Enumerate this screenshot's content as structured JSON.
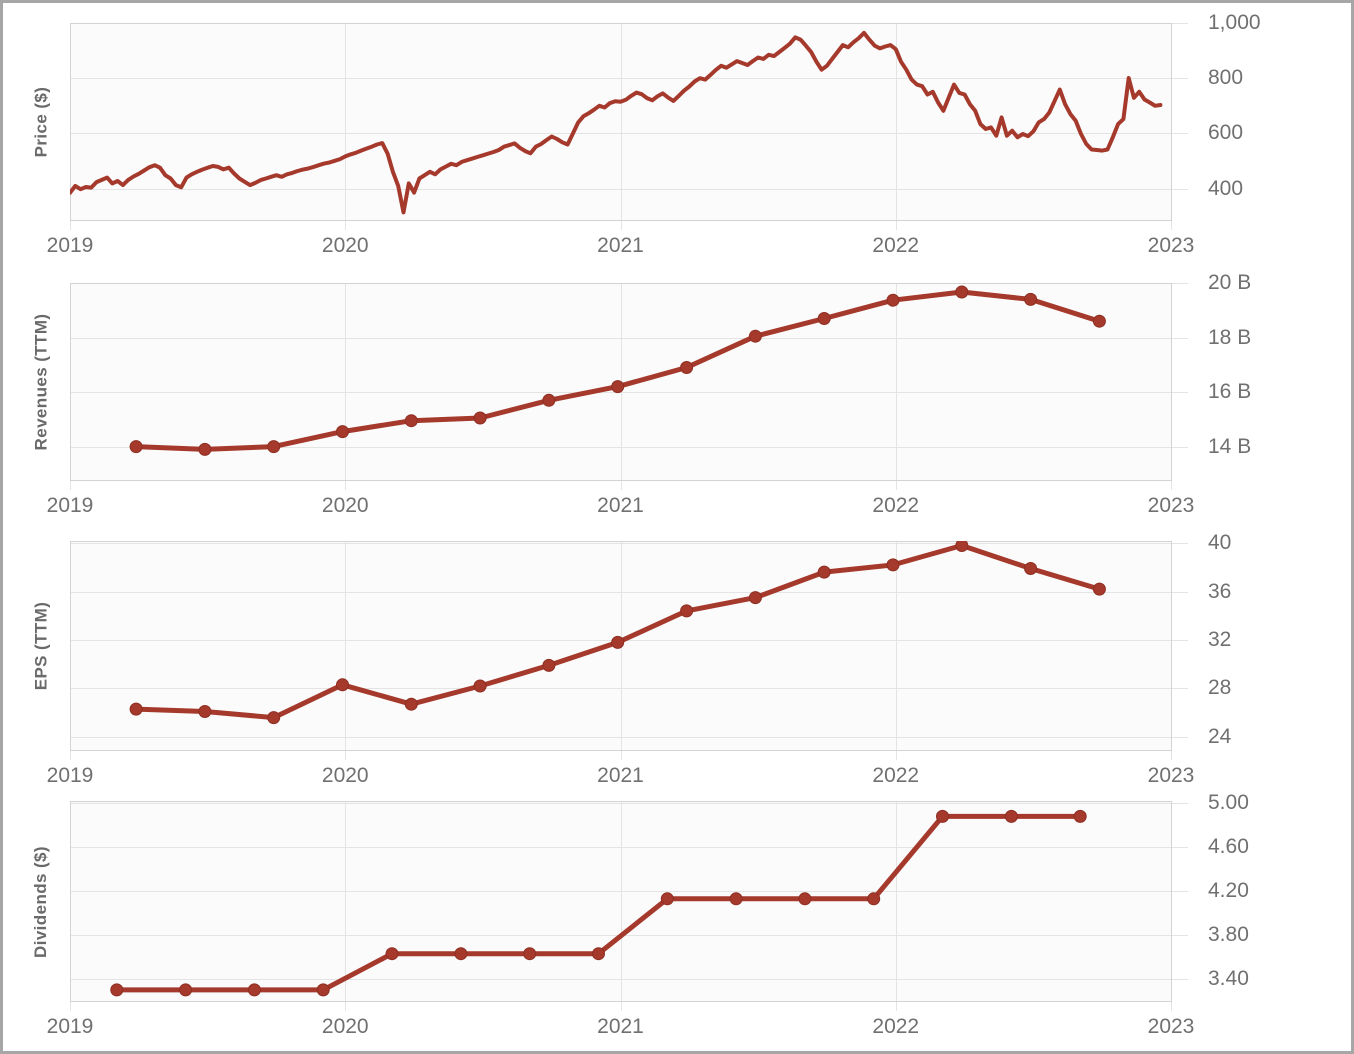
{
  "style": {
    "line_color": "#a5392c",
    "marker_edge_color": "#8e2e22",
    "grid_color": "#e4e4e4",
    "axis_color": "#d3d3d3",
    "plot_bg": "#fbfbfb",
    "tick_label_color": "#707070",
    "axis_title_color": "#6a6a6a",
    "frame_border_color": "#a6a6a6"
  },
  "chart_data": [
    {
      "type": "line",
      "ylabel": "Price ($)",
      "markers": false,
      "line_width": 4,
      "xlim": [
        2019,
        2023
      ],
      "ylim": [
        283,
        1000
      ],
      "yticks": [
        400,
        600,
        800,
        1000
      ],
      "ytick_labels": [
        "400",
        "600",
        "800",
        "1,000"
      ],
      "xticks": [
        2019,
        2020,
        2021,
        2022,
        2023
      ],
      "xtick_labels": [
        "2019",
        "2020",
        "2021",
        "2022",
        "2023"
      ],
      "grid": true,
      "x_start": 2019.0,
      "x_step": 0.0192308,
      "values": [
        385,
        410,
        398,
        406,
        404,
        424,
        432,
        440,
        419,
        428,
        413,
        432,
        444,
        454,
        466,
        478,
        485,
        476,
        449,
        437,
        413,
        405,
        440,
        452,
        461,
        469,
        476,
        482,
        479,
        470,
        476,
        455,
        437,
        425,
        413,
        421,
        431,
        437,
        443,
        449,
        443,
        452,
        457,
        464,
        469,
        473,
        479,
        485,
        491,
        495,
        501,
        507,
        517,
        524,
        530,
        538,
        545,
        552,
        560,
        565,
        527,
        461,
        410,
        314,
        419,
        386,
        437,
        449,
        461,
        452,
        470,
        480,
        490,
        485,
        497,
        503,
        509,
        515,
        521,
        527,
        533,
        540,
        552,
        558,
        564,
        548,
        536,
        528,
        552,
        562,
        576,
        589,
        580,
        568,
        560,
        600,
        640,
        662,
        673,
        686,
        700,
        694,
        710,
        717,
        715,
        722,
        736,
        748,
        742,
        728,
        720,
        735,
        745,
        730,
        718,
        736,
        755,
        770,
        788,
        800,
        795,
        812,
        830,
        845,
        838,
        850,
        862,
        855,
        848,
        862,
        875,
        870,
        885,
        880,
        895,
        910,
        925,
        948,
        940,
        918,
        895,
        860,
        831,
        845,
        870,
        895,
        920,
        912,
        930,
        945,
        964,
        940,
        918,
        908,
        915,
        920,
        905,
        860,
        831,
        795,
        777,
        771,
        741,
        751,
        712,
        682,
        730,
        777,
        747,
        741,
        706,
        682,
        634,
        616,
        622,
        592,
        658,
        592,
        610,
        586,
        598,
        590,
        608,
        640,
        652,
        676,
        717,
        759,
        706,
        670,
        646,
        598,
        562,
        542,
        540,
        538,
        542,
        586,
        634,
        652,
        801,
        729,
        751,
        723,
        712,
        700,
        703
      ]
    },
    {
      "type": "line",
      "ylabel": "Revenues (TTM)",
      "markers": true,
      "line_width": 5,
      "xlim": [
        2019,
        2023
      ],
      "ylim": [
        12.74,
        20.0
      ],
      "yticks": [
        14,
        16,
        18,
        20
      ],
      "ytick_labels": [
        "14 B",
        "16 B",
        "18 B",
        "20 B"
      ],
      "xticks": [
        2019,
        2020,
        2021,
        2022,
        2023
      ],
      "xtick_labels": [
        "2019",
        "2020",
        "2021",
        "2022",
        "2023"
      ],
      "grid": true,
      "x": [
        2019.24,
        2019.49,
        2019.74,
        2019.99,
        2020.24,
        2020.49,
        2020.74,
        2020.99,
        2021.24,
        2021.49,
        2021.74,
        2021.99,
        2022.24,
        2022.49,
        2022.74
      ],
      "values": [
        14.0,
        13.9,
        14.0,
        14.55,
        14.95,
        15.05,
        15.7,
        16.2,
        16.9,
        18.05,
        18.7,
        19.37,
        19.67,
        19.4,
        18.6
      ]
    },
    {
      "type": "line",
      "ylabel": "EPS (TTM)",
      "markers": true,
      "line_width": 5,
      "xlim": [
        2019,
        2023
      ],
      "ylim": [
        22.84,
        40.17
      ],
      "yticks": [
        24,
        28,
        32,
        36,
        40
      ],
      "ytick_labels": [
        "24",
        "28",
        "32",
        "36",
        "40"
      ],
      "xticks": [
        2019,
        2020,
        2021,
        2022,
        2023
      ],
      "xtick_labels": [
        "2019",
        "2020",
        "2021",
        "2022",
        "2023"
      ],
      "grid": true,
      "x": [
        2019.24,
        2019.49,
        2019.74,
        2019.99,
        2020.24,
        2020.49,
        2020.74,
        2020.99,
        2021.24,
        2021.49,
        2021.74,
        2021.99,
        2022.24,
        2022.49,
        2022.74
      ],
      "values": [
        26.3,
        26.1,
        25.6,
        28.3,
        26.7,
        28.2,
        29.9,
        31.8,
        34.4,
        35.5,
        37.6,
        38.2,
        39.8,
        37.9,
        36.2
      ]
    },
    {
      "type": "line",
      "ylabel": "Dividends ($)",
      "markers": true,
      "line_width": 5,
      "xlim": [
        2019,
        2023
      ],
      "ylim": [
        3.19,
        5.02
      ],
      "yticks": [
        3.4,
        3.8,
        4.2,
        4.6,
        5.0
      ],
      "ytick_labels": [
        "3.40",
        "3.80",
        "4.20",
        "4.60",
        "5.00"
      ],
      "xticks": [
        2019,
        2020,
        2021,
        2022,
        2023
      ],
      "xtick_labels": [
        "2019",
        "2020",
        "2021",
        "2022",
        "2023"
      ],
      "grid": true,
      "x": [
        2019.17,
        2019.42,
        2019.67,
        2019.92,
        2020.17,
        2020.42,
        2020.67,
        2020.92,
        2021.17,
        2021.42,
        2021.67,
        2021.92,
        2022.17,
        2022.42,
        2022.67
      ],
      "values": [
        3.3,
        3.3,
        3.3,
        3.3,
        3.63,
        3.63,
        3.63,
        3.63,
        4.13,
        4.13,
        4.13,
        4.13,
        4.88,
        4.88,
        4.88
      ]
    }
  ]
}
